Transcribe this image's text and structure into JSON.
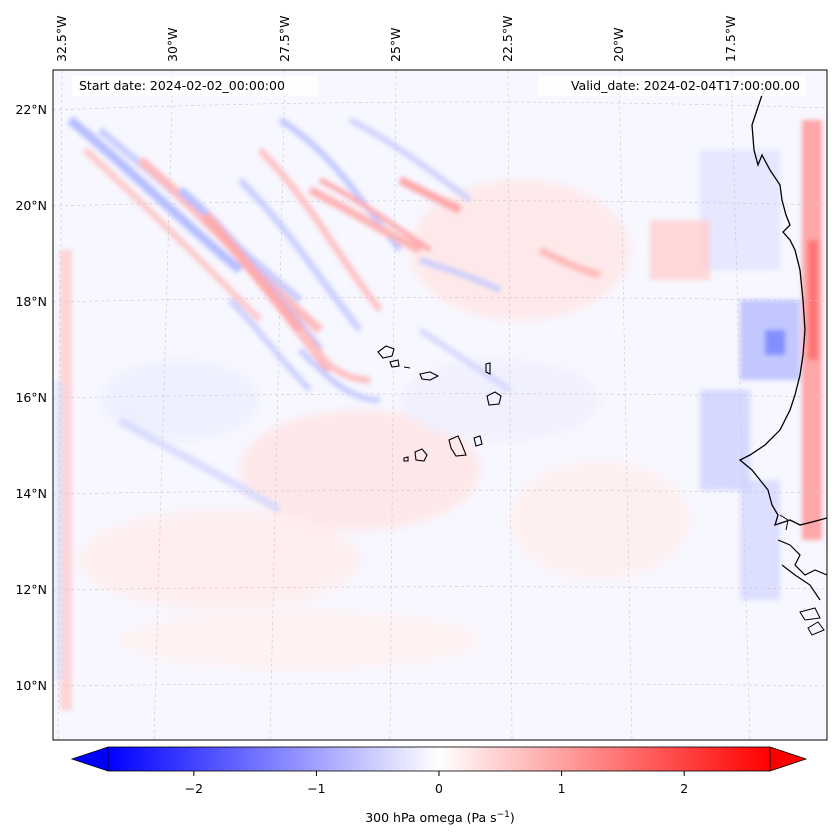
{
  "map": {
    "start_date_label": "Start date: 2024-02-02_00:00:00",
    "valid_date_label": "Valid_date: 2024-02-04T17:00:00.00",
    "lon_labels": [
      "32.5°W",
      "30°W",
      "27.5°W",
      "25°W",
      "22.5°W",
      "20°W",
      "17.5°W"
    ],
    "lat_labels": [
      "22°N",
      "20°N",
      "18°N",
      "16°N",
      "14°N",
      "12°N",
      "10°N"
    ],
    "field": "300 hPa omega",
    "coastline_color": "#000000",
    "gridline_color": "#c8c8c8"
  },
  "colorbar": {
    "label_text": "300 hPa omega (Pa s",
    "label_superscript": "−1",
    "label_close": ")",
    "ticks": [
      "−2",
      "−1",
      "0",
      "1",
      "2"
    ],
    "tick_values": [
      -2,
      -1,
      0,
      1,
      2
    ],
    "range": [
      -2.7,
      2.7
    ],
    "colormap": "bwr",
    "color_low": "#0000ff",
    "color_mid": "#ffffff",
    "color_high": "#ff0000"
  }
}
